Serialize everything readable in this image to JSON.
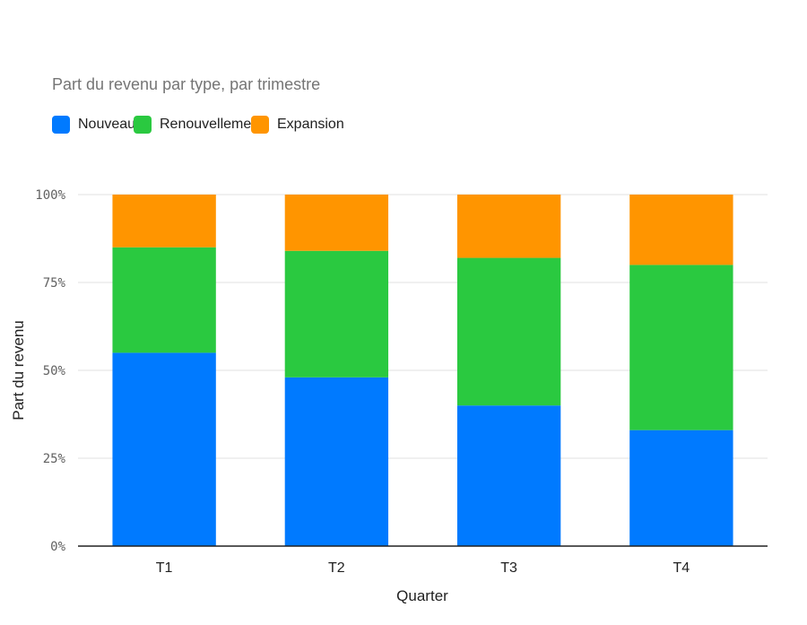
{
  "chart_data": {
    "type": "bar",
    "stacked": true,
    "title": "Part du revenu par type, par trimestre",
    "xlabel": "Quarter",
    "ylabel": "Part du revenu",
    "categories": [
      "T1",
      "T2",
      "T3",
      "T4"
    ],
    "yticks": [
      "0%",
      "25%",
      "50%",
      "75%",
      "100%"
    ],
    "ylim": [
      0,
      100
    ],
    "grid": true,
    "legend_position": "top-left",
    "series": [
      {
        "name": "Nouveau",
        "color": "#007aff",
        "values": [
          55,
          48,
          40,
          33
        ]
      },
      {
        "name": "Renouvellement",
        "color": "#2ac940",
        "values": [
          30,
          36,
          42,
          47
        ]
      },
      {
        "name": "Expansion",
        "color": "#ff9500",
        "values": [
          15,
          16,
          18,
          20
        ]
      }
    ]
  }
}
